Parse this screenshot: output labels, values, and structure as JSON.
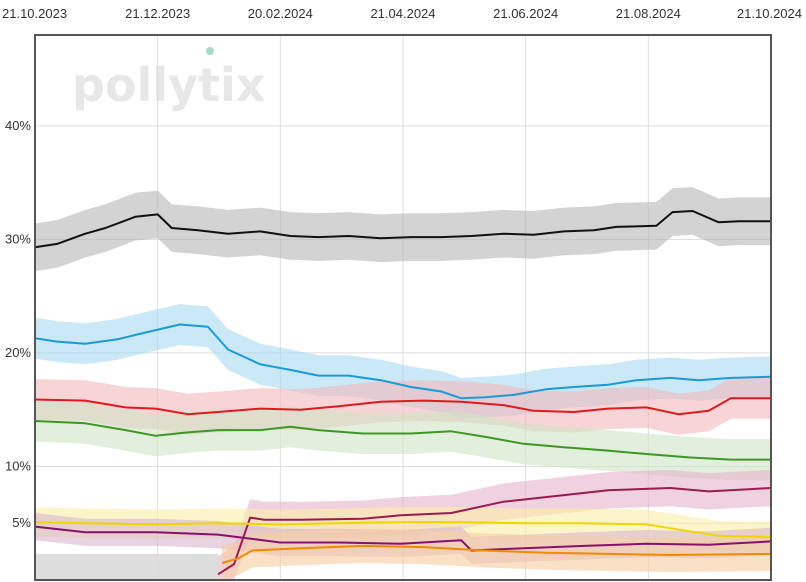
{
  "logo": {
    "text": "pollytix",
    "dot_color": "#a8dcc6"
  },
  "chart_data": {
    "type": "line",
    "title": "",
    "xlabel": "",
    "ylabel": "",
    "x_ticks": [
      "21.10.2023",
      "21.12.2023",
      "20.02.2024",
      "21.04.2024",
      "21.06.2024",
      "21.08.2024",
      "21.10.2024"
    ],
    "y_ticks": [
      "5%",
      "10%",
      "20%",
      "30%",
      "40%"
    ],
    "y_tick_values": [
      5,
      10,
      20,
      30,
      40
    ],
    "xlim": [
      "2023-10-21",
      "2024-10-21"
    ],
    "ylim": [
      0,
      48
    ],
    "grid": true,
    "legend": "none",
    "series": [
      {
        "color": "#111111",
        "band": "#b5b5b5",
        "band_width": 2.1,
        "points": [
          [
            "2023-10-21",
            29.3
          ],
          [
            "2023-11-01",
            29.6
          ],
          [
            "2023-11-15",
            30.5
          ],
          [
            "2023-11-25",
            31.0
          ],
          [
            "2023-12-10",
            32.0
          ],
          [
            "2023-12-21",
            32.2
          ],
          [
            "2023-12-28",
            31.0
          ],
          [
            "2024-01-10",
            30.8
          ],
          [
            "2024-01-25",
            30.5
          ],
          [
            "2024-02-10",
            30.7
          ],
          [
            "2024-02-25",
            30.3
          ],
          [
            "2024-03-10",
            30.2
          ],
          [
            "2024-03-25",
            30.3
          ],
          [
            "2024-04-10",
            30.1
          ],
          [
            "2024-04-25",
            30.2
          ],
          [
            "2024-05-10",
            30.2
          ],
          [
            "2024-05-25",
            30.3
          ],
          [
            "2024-06-10",
            30.5
          ],
          [
            "2024-06-25",
            30.4
          ],
          [
            "2024-07-10",
            30.7
          ],
          [
            "2024-07-25",
            30.8
          ],
          [
            "2024-08-05",
            31.1
          ],
          [
            "2024-08-25",
            31.2
          ],
          [
            "2024-09-02",
            32.4
          ],
          [
            "2024-09-12",
            32.5
          ],
          [
            "2024-09-25",
            31.5
          ],
          [
            "2024-10-05",
            31.6
          ],
          [
            "2024-10-21",
            31.6
          ]
        ]
      },
      {
        "color": "#1a9ad6",
        "band": "#a8d9f0",
        "band_width": 1.8,
        "points": [
          [
            "2023-10-21",
            21.3
          ],
          [
            "2023-11-01",
            21.0
          ],
          [
            "2023-11-15",
            20.8
          ],
          [
            "2023-12-01",
            21.2
          ],
          [
            "2023-12-15",
            21.8
          ],
          [
            "2024-01-01",
            22.5
          ],
          [
            "2024-01-15",
            22.3
          ],
          [
            "2024-01-25",
            20.3
          ],
          [
            "2024-02-10",
            19.0
          ],
          [
            "2024-02-25",
            18.5
          ],
          [
            "2024-03-10",
            18.0
          ],
          [
            "2024-03-25",
            18.0
          ],
          [
            "2024-04-10",
            17.6
          ],
          [
            "2024-04-25",
            17.0
          ],
          [
            "2024-05-10",
            16.6
          ],
          [
            "2024-05-20",
            16.0
          ],
          [
            "2024-06-01",
            16.1
          ],
          [
            "2024-06-15",
            16.3
          ],
          [
            "2024-07-01",
            16.8
          ],
          [
            "2024-07-15",
            17.0
          ],
          [
            "2024-08-01",
            17.2
          ],
          [
            "2024-08-15",
            17.6
          ],
          [
            "2024-09-01",
            17.8
          ],
          [
            "2024-09-15",
            17.6
          ],
          [
            "2024-10-01",
            17.8
          ],
          [
            "2024-10-21",
            17.9
          ]
        ]
      },
      {
        "color": "#e0181f",
        "band": "#f2b8bb",
        "band_width": 1.8,
        "points": [
          [
            "2023-10-21",
            15.9
          ],
          [
            "2023-11-15",
            15.8
          ],
          [
            "2023-12-05",
            15.2
          ],
          [
            "2023-12-20",
            15.1
          ],
          [
            "2024-01-05",
            14.6
          ],
          [
            "2024-01-20",
            14.8
          ],
          [
            "2024-02-10",
            15.1
          ],
          [
            "2024-03-01",
            15.0
          ],
          [
            "2024-03-20",
            15.3
          ],
          [
            "2024-04-10",
            15.7
          ],
          [
            "2024-05-01",
            15.8
          ],
          [
            "2024-05-20",
            15.7
          ],
          [
            "2024-06-10",
            15.4
          ],
          [
            "2024-06-25",
            14.9
          ],
          [
            "2024-07-15",
            14.8
          ],
          [
            "2024-08-01",
            15.1
          ],
          [
            "2024-08-20",
            15.2
          ],
          [
            "2024-09-05",
            14.6
          ],
          [
            "2024-09-20",
            14.9
          ],
          [
            "2024-10-01",
            16.0
          ],
          [
            "2024-10-21",
            16.0
          ]
        ]
      },
      {
        "color": "#3e9624",
        "band": "#cfe5c5",
        "band_width": 1.8,
        "points": [
          [
            "2023-10-21",
            14.0
          ],
          [
            "2023-11-15",
            13.8
          ],
          [
            "2023-12-05",
            13.2
          ],
          [
            "2023-12-20",
            12.7
          ],
          [
            "2024-01-05",
            13.0
          ],
          [
            "2024-01-20",
            13.2
          ],
          [
            "2024-02-10",
            13.2
          ],
          [
            "2024-02-25",
            13.5
          ],
          [
            "2024-03-10",
            13.2
          ],
          [
            "2024-04-01",
            12.9
          ],
          [
            "2024-04-25",
            12.9
          ],
          [
            "2024-05-15",
            13.1
          ],
          [
            "2024-06-01",
            12.6
          ],
          [
            "2024-06-20",
            12.0
          ],
          [
            "2024-07-10",
            11.7
          ],
          [
            "2024-08-01",
            11.4
          ],
          [
            "2024-08-20",
            11.1
          ],
          [
            "2024-09-10",
            10.8
          ],
          [
            "2024-10-01",
            10.6
          ],
          [
            "2024-10-21",
            10.6
          ]
        ]
      },
      {
        "color": "#9a1a52",
        "band": "#e6b3c9",
        "band_width": 1.6,
        "points": [
          [
            "2024-01-20",
            0.5
          ],
          [
            "2024-01-28",
            1.4
          ],
          [
            "2024-02-05",
            5.5
          ],
          [
            "2024-02-12",
            5.3
          ],
          [
            "2024-03-01",
            5.3
          ],
          [
            "2024-04-01",
            5.4
          ],
          [
            "2024-04-20",
            5.7
          ],
          [
            "2024-05-15",
            5.9
          ],
          [
            "2024-06-10",
            6.9
          ],
          [
            "2024-07-01",
            7.3
          ],
          [
            "2024-08-01",
            7.9
          ],
          [
            "2024-09-01",
            8.1
          ],
          [
            "2024-09-20",
            7.8
          ],
          [
            "2024-10-10",
            8.0
          ],
          [
            "2024-10-21",
            8.1
          ]
        ]
      },
      {
        "color": "#f0d600",
        "band": "#fbeea6",
        "band_width": 1.3,
        "points": [
          [
            "2023-10-21",
            5.1
          ],
          [
            "2023-11-15",
            5.0
          ],
          [
            "2023-12-20",
            4.9
          ],
          [
            "2024-01-20",
            5.0
          ],
          [
            "2024-02-20",
            4.9
          ],
          [
            "2024-03-20",
            5.0
          ],
          [
            "2024-04-20",
            5.1
          ],
          [
            "2024-05-20",
            5.1
          ],
          [
            "2024-06-20",
            5.0
          ],
          [
            "2024-07-20",
            5.0
          ],
          [
            "2024-08-20",
            4.9
          ],
          [
            "2024-09-10",
            4.3
          ],
          [
            "2024-09-25",
            3.9
          ],
          [
            "2024-10-21",
            3.8
          ]
        ]
      },
      {
        "color": "#87106e",
        "band": "#d8b6cf",
        "band_width": 1.2,
        "points": [
          [
            "2023-10-21",
            4.7
          ],
          [
            "2023-11-15",
            4.2
          ],
          [
            "2023-12-20",
            4.2
          ],
          [
            "2024-01-20",
            4.0
          ],
          [
            "2024-02-20",
            3.3
          ],
          [
            "2024-03-20",
            3.3
          ],
          [
            "2024-04-20",
            3.2
          ],
          [
            "2024-05-20",
            3.5
          ],
          [
            "2024-05-25",
            2.6
          ],
          [
            "2024-06-20",
            2.8
          ],
          [
            "2024-07-20",
            3.0
          ],
          [
            "2024-08-20",
            3.2
          ],
          [
            "2024-09-20",
            3.1
          ],
          [
            "2024-10-21",
            3.4
          ]
        ]
      },
      {
        "color": "#f08a00",
        "band": "#f7cda0",
        "band_width": 1.5,
        "points": [
          [
            "2024-01-22",
            1.5
          ],
          [
            "2024-01-30",
            1.9
          ],
          [
            "2024-02-06",
            2.6
          ],
          [
            "2024-03-01",
            2.8
          ],
          [
            "2024-04-01",
            3.0
          ],
          [
            "2024-05-01",
            2.9
          ],
          [
            "2024-06-01",
            2.6
          ],
          [
            "2024-07-01",
            2.4
          ],
          [
            "2024-08-01",
            2.3
          ],
          [
            "2024-09-01",
            2.2
          ],
          [
            "2024-10-21",
            2.3
          ]
        ]
      },
      {
        "color": "#c8c8c8",
        "band": "#d9d9d9",
        "band_width": 0.0,
        "points": [
          [
            "2023-10-21",
            2.3
          ],
          [
            "2024-01-20",
            2.3
          ]
        ]
      }
    ]
  }
}
